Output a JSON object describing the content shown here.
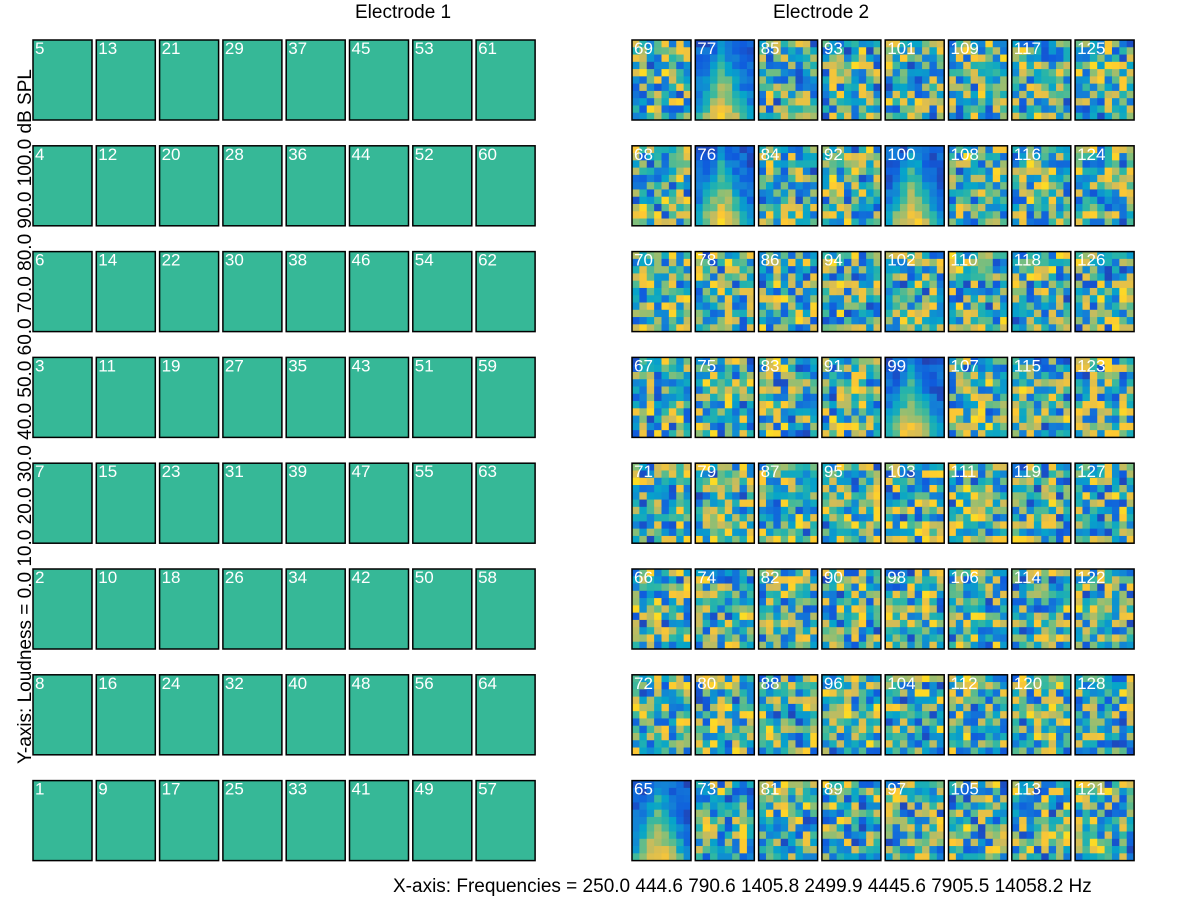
{
  "chart_data": {
    "type": "heatmap",
    "panels": [
      {
        "title": "Electrode 1",
        "uniform_color": "#36b897",
        "channel_grid": [
          [
            5,
            13,
            21,
            29,
            37,
            45,
            53,
            61
          ],
          [
            4,
            12,
            20,
            28,
            36,
            44,
            52,
            60
          ],
          [
            6,
            14,
            22,
            30,
            38,
            46,
            54,
            62
          ],
          [
            3,
            11,
            19,
            27,
            35,
            43,
            51,
            59
          ],
          [
            7,
            15,
            23,
            31,
            39,
            47,
            55,
            63
          ],
          [
            2,
            10,
            18,
            26,
            34,
            42,
            50,
            58
          ],
          [
            8,
            16,
            24,
            32,
            40,
            48,
            56,
            64
          ],
          [
            1,
            9,
            17,
            25,
            33,
            41,
            49,
            57
          ]
        ]
      },
      {
        "title": "Electrode 2",
        "channel_grid": [
          [
            69,
            77,
            85,
            93,
            101,
            109,
            117,
            125
          ],
          [
            68,
            76,
            84,
            92,
            100,
            108,
            116,
            124
          ],
          [
            70,
            78,
            86,
            94,
            102,
            110,
            118,
            126
          ],
          [
            67,
            75,
            83,
            91,
            99,
            107,
            115,
            123
          ],
          [
            71,
            79,
            87,
            95,
            103,
            111,
            119,
            127
          ],
          [
            66,
            74,
            82,
            90,
            98,
            106,
            114,
            122
          ],
          [
            72,
            80,
            88,
            96,
            104,
            112,
            120,
            128
          ],
          [
            65,
            73,
            81,
            89,
            97,
            105,
            113,
            121
          ]
        ],
        "tuned_channels": [
          77,
          76,
          100,
          99,
          65
        ]
      }
    ],
    "x_frequencies_hz": [
      250.0,
      444.6,
      790.6,
      1405.8,
      2499.9,
      4445.6,
      7905.5,
      14058.2
    ],
    "y_loudness_db_spl": [
      0.0,
      10.0,
      20.0,
      30.0,
      40.0,
      50.0,
      60.0,
      70.0,
      80.0,
      90.0,
      100.0
    ],
    "grid": false,
    "legend": "none"
  },
  "labels": {
    "xaxis_caption": "X-axis: Frequencies = 250.0 444.6 790.6 1405.8 2499.9 4445.6 7905.5 14058.2 Hz",
    "yaxis_caption": "Y-axis: Loudness  = 0.0 10.0 20.0 30.0 40.0 50.0 60.0 70.0 80.0 90.0 100.0 dB SPL"
  },
  "colormap": {
    "name": "parula",
    "stops": [
      "#352a87",
      "#0f5cdd",
      "#1481d6",
      "#06a4ca",
      "#2eb7a4",
      "#87bf77",
      "#d1bb59",
      "#fec832",
      "#f9fb0e"
    ]
  }
}
